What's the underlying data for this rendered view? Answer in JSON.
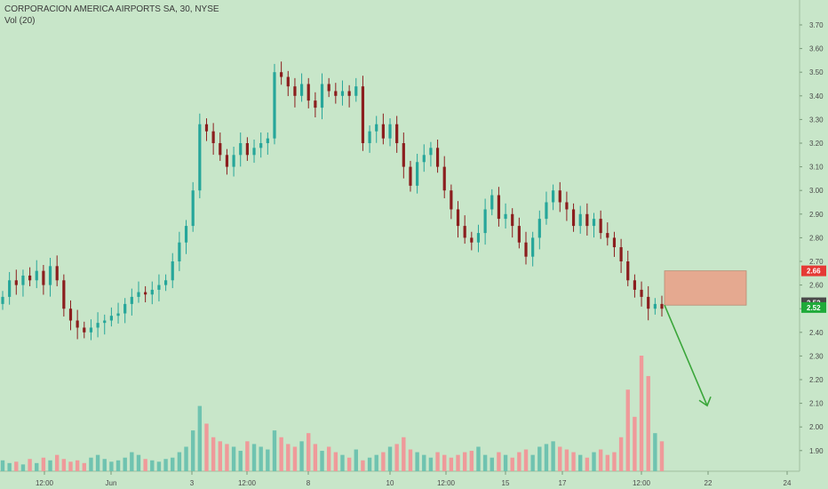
{
  "header": {
    "title": "CORPORACION AMERICA AIRPORTS SA, 30, NYSE",
    "indicator": "Vol (20)"
  },
  "chart_data": {
    "type": "candlestick",
    "y_ticks": [
      "3.70",
      "3.60",
      "3.50",
      "3.40",
      "3.30",
      "3.20",
      "3.10",
      "3.00",
      "2.90",
      "2.80",
      "2.70",
      "2.60",
      "2.50",
      "2.40",
      "2.30",
      "2.20",
      "2.10",
      "2.00",
      "1.90"
    ],
    "x_ticks": [
      "12:00",
      "Jun",
      "3",
      "12:00",
      "8",
      "10",
      "12:00",
      "15",
      "17",
      "12:00",
      "22",
      "24"
    ],
    "ylim": [
      1.85,
      3.75
    ],
    "colors": {
      "up": "#26a69a",
      "down": "#8b1e1e",
      "vol_up": "#6fc3b0",
      "vol_down": "#ef9a9a",
      "bg": "#c8e6c9",
      "arrow": "#3aa63a"
    },
    "price_badges": [
      {
        "label": "2.66",
        "value": 2.66,
        "color": "#e53935"
      },
      {
        "label": "2.52",
        "value": 2.525,
        "color": "#4a4a4a"
      },
      {
        "label": "2.52",
        "value": 2.505,
        "color": "#1faa3a"
      }
    ],
    "zone": {
      "top": 2.66,
      "bottom": 2.515,
      "color": "#e5a990"
    },
    "series": [
      {
        "name": "",
        "description": "price",
        "values": [
          2.55,
          2.62,
          2.6,
          2.64,
          2.62,
          2.66,
          2.6,
          2.68,
          2.62,
          2.5,
          2.45,
          2.42,
          2.4,
          2.42,
          2.44,
          2.45,
          2.47,
          2.48,
          2.52,
          2.55,
          2.57,
          2.56,
          2.58,
          2.6,
          2.62,
          2.7,
          2.78,
          2.85,
          3.0,
          3.28,
          3.25,
          3.2,
          3.15,
          3.1,
          3.15,
          3.2,
          3.15,
          3.18,
          3.2,
          3.22,
          3.5,
          3.48,
          3.44,
          3.4,
          3.45,
          3.38,
          3.35,
          3.45,
          3.42,
          3.4,
          3.42,
          3.4,
          3.44,
          3.2,
          3.25,
          3.28,
          3.22,
          3.28,
          3.2,
          3.1,
          3.02,
          3.12,
          3.15,
          3.18,
          3.1,
          3.0,
          2.92,
          2.85,
          2.8,
          2.78,
          2.82,
          2.92,
          2.98,
          2.88,
          2.9,
          2.85,
          2.78,
          2.72,
          2.8,
          2.88,
          2.95,
          3.0,
          2.95,
          2.92,
          2.85,
          2.9,
          2.85,
          2.88,
          2.82,
          2.8,
          2.76,
          2.7,
          2.62,
          2.58,
          2.55,
          2.5,
          2.52,
          2.5
        ]
      },
      {
        "name": "",
        "description": "volume",
        "values": [
          8,
          6,
          7,
          5,
          9,
          6,
          10,
          8,
          12,
          9,
          7,
          8,
          6,
          10,
          12,
          9,
          7,
          8,
          10,
          14,
          12,
          9,
          8,
          7,
          9,
          10,
          14,
          18,
          30,
          48,
          35,
          25,
          22,
          20,
          18,
          15,
          22,
          20,
          18,
          16,
          30,
          25,
          20,
          18,
          22,
          28,
          20,
          15,
          18,
          14,
          12,
          10,
          16,
          8,
          10,
          12,
          14,
          18,
          20,
          25,
          16,
          14,
          12,
          10,
          14,
          12,
          10,
          12,
          14,
          15,
          18,
          12,
          10,
          14,
          12,
          10,
          14,
          16,
          12,
          18,
          20,
          22,
          18,
          16,
          14,
          12,
          10,
          14,
          16,
          12,
          14,
          25,
          60,
          40,
          85,
          70,
          28,
          22
        ]
      }
    ]
  }
}
